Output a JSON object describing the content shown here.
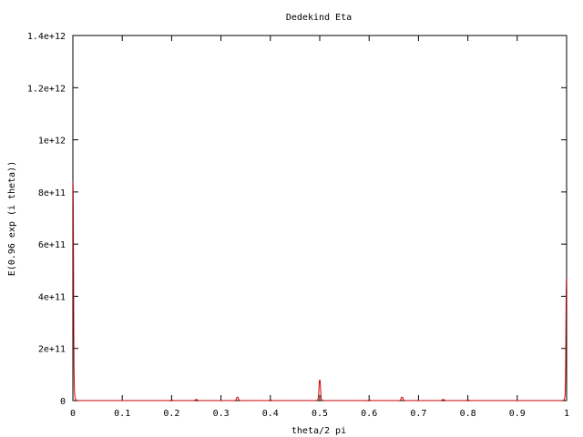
{
  "chart_data": {
    "type": "line",
    "title": "Dedekind Eta",
    "xlabel": "theta/2 pi",
    "ylabel": "E(0.96 exp (i theta))",
    "xlim": [
      0,
      1
    ],
    "ylim": [
      0,
      1400000000000
    ],
    "grid": false,
    "legend": "none",
    "x_ticks": [
      0,
      0.1,
      0.2,
      0.3,
      0.4,
      0.5,
      0.6,
      0.7,
      0.8,
      0.9,
      1
    ],
    "x_tick_labels": [
      "0",
      "0.1",
      "0.2",
      "0.3",
      "0.4",
      "0.5",
      "0.6",
      "0.7",
      "0.8",
      "0.9",
      "1"
    ],
    "y_ticks": [
      0,
      200000000000,
      400000000000,
      600000000000,
      800000000000,
      1000000000000,
      1200000000000,
      1400000000000
    ],
    "y_tick_labels": [
      "0",
      "2e+11",
      "4e+11",
      "6e+11",
      "8e+11",
      "1e+12",
      "1.2e+12",
      "1.4e+12"
    ],
    "series": [
      {
        "color": "#cc0000",
        "peaks": [
          {
            "x": 0.0,
            "height": 840000000000,
            "width": 0.0015
          },
          {
            "x": 1.0,
            "height": 470000000000,
            "width": 0.0015
          },
          {
            "x": 0.5,
            "height": 78000000000,
            "width": 0.0018
          },
          {
            "x": 0.3333,
            "height": 13000000000,
            "width": 0.0022
          },
          {
            "x": 0.6667,
            "height": 13000000000,
            "width": 0.0022
          },
          {
            "x": 0.25,
            "height": 4000000000,
            "width": 0.0025
          },
          {
            "x": 0.75,
            "height": 4000000000,
            "width": 0.0025
          },
          {
            "x": 0.2,
            "height": 1500000000,
            "width": 0.0025
          },
          {
            "x": 0.4,
            "height": 1500000000,
            "width": 0.0025
          },
          {
            "x": 0.6,
            "height": 1500000000,
            "width": 0.0025
          },
          {
            "x": 0.8,
            "height": 1500000000,
            "width": 0.0025
          }
        ]
      }
    ]
  }
}
